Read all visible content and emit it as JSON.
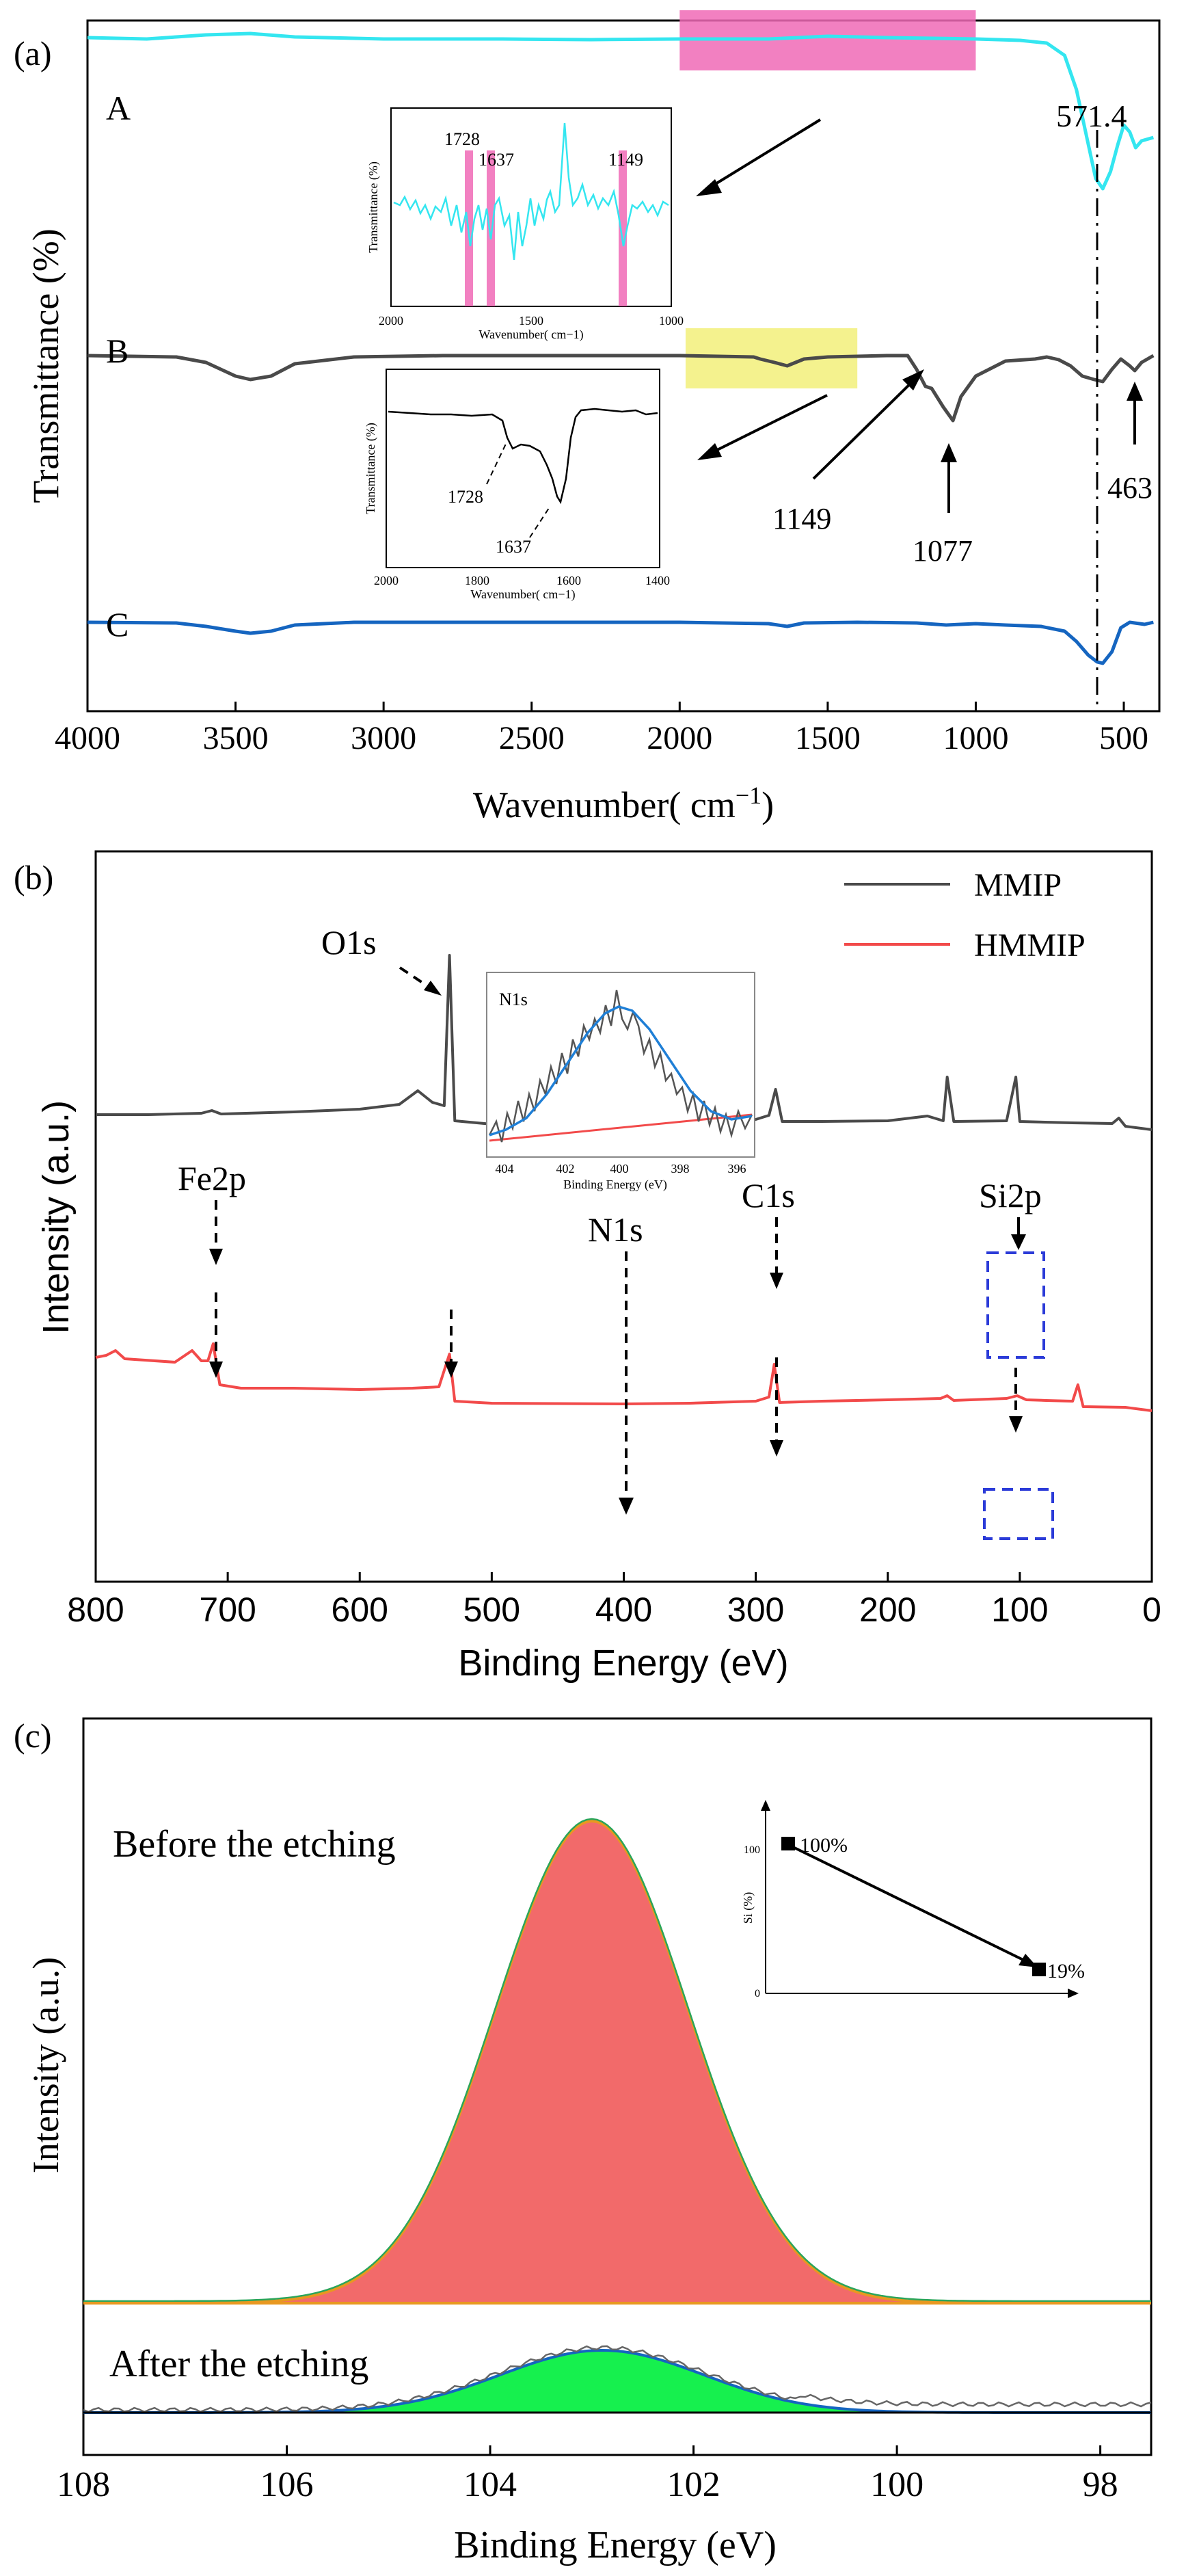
{
  "chart_data": [
    {
      "panel": "(a)",
      "type": "line",
      "xlabel": "Wavenumber( cm",
      "xlabel_sup": "−1",
      "xlabel_close": ")",
      "ylabel": "Transmittance (%)",
      "xlim": [
        4000,
        380
      ],
      "ticks": [
        4000,
        3500,
        3000,
        2500,
        2000,
        1500,
        1000,
        500
      ],
      "series": [
        {
          "name": "A",
          "color": "#34e6f0",
          "values": [
            [
              4000,
              34
            ],
            [
              3800,
              36
            ],
            [
              3700,
              33
            ],
            [
              3600,
              30
            ],
            [
              3450,
              28
            ],
            [
              3300,
              33
            ],
            [
              3000,
              36
            ],
            [
              2600,
              36
            ],
            [
              2300,
              37
            ],
            [
              2000,
              36
            ],
            [
              1700,
              36
            ],
            [
              1500,
              32
            ],
            [
              1300,
              34
            ],
            [
              1000,
              36
            ],
            [
              850,
              38
            ],
            [
              760,
              42
            ],
            [
              700,
              60
            ],
            [
              660,
              110
            ],
            [
              620,
              190
            ],
            [
              595,
              240
            ],
            [
              571,
              255
            ],
            [
              545,
              230
            ],
            [
              520,
              190
            ],
            [
              500,
              162
            ],
            [
              480,
              172
            ],
            [
              460,
              195
            ],
            [
              440,
              185
            ],
            [
              400,
              180
            ]
          ]
        },
        {
          "name": "B",
          "color": "#4a4a4a",
          "values": [
            [
              4000,
              210
            ],
            [
              3700,
              212
            ],
            [
              3600,
              220
            ],
            [
              3500,
              240
            ],
            [
              3450,
              245
            ],
            [
              3380,
              240
            ],
            [
              3300,
              222
            ],
            [
              3100,
              212
            ],
            [
              2800,
              210
            ],
            [
              2500,
              210
            ],
            [
              2000,
              210
            ],
            [
              1750,
              212
            ],
            [
              1728,
              215
            ],
            [
              1680,
              220
            ],
            [
              1637,
              225
            ],
            [
              1580,
              215
            ],
            [
              1500,
              212
            ],
            [
              1300,
              210
            ],
            [
              1230,
              210
            ],
            [
              1200,
              230
            ],
            [
              1170,
              255
            ],
            [
              1149,
              258
            ],
            [
              1110,
              285
            ],
            [
              1077,
              305
            ],
            [
              1050,
              270
            ],
            [
              1000,
              240
            ],
            [
              900,
              218
            ],
            [
              800,
              215
            ],
            [
              760,
              212
            ],
            [
              720,
              216
            ],
            [
              680,
              225
            ],
            [
              640,
              240
            ],
            [
              600,
              245
            ],
            [
              571,
              248
            ],
            [
              540,
              230
            ],
            [
              510,
              215
            ],
            [
              480,
              225
            ],
            [
              463,
              232
            ],
            [
              440,
              220
            ],
            [
              400,
              210
            ]
          ]
        },
        {
          "name": "C",
          "color": "#1565c0",
          "values": [
            [
              4000,
              372
            ],
            [
              3700,
              373
            ],
            [
              3600,
              378
            ],
            [
              3500,
              385
            ],
            [
              3450,
              388
            ],
            [
              3380,
              385
            ],
            [
              3300,
              376
            ],
            [
              3100,
              372
            ],
            [
              2500,
              372
            ],
            [
              2000,
              372
            ],
            [
              1700,
              374
            ],
            [
              1637,
              378
            ],
            [
              1580,
              373
            ],
            [
              1400,
              372
            ],
            [
              1200,
              373
            ],
            [
              1100,
              376
            ],
            [
              1000,
              374
            ],
            [
              900,
              376
            ],
            [
              780,
              378
            ],
            [
              700,
              385
            ],
            [
              660,
              400
            ],
            [
              620,
              420
            ],
            [
              590,
              430
            ],
            [
              571,
              432
            ],
            [
              540,
              415
            ],
            [
              510,
              380
            ],
            [
              480,
              372
            ],
            [
              430,
              375
            ],
            [
              400,
              372
            ]
          ]
        }
      ],
      "highlights": [
        {
          "series": "A",
          "from": 2000,
          "to": 1000,
          "color": "#f06ab6"
        },
        {
          "series": "B",
          "from": 1980,
          "to": 1400,
          "color": "#f2f07a"
        }
      ],
      "annotations": [
        "571.4",
        "1149",
        "1077",
        "463"
      ],
      "insets": [
        {
          "series": "A",
          "xlabel": "Wavenumber( cm−1)",
          "ylabel": "Transmittance (%)",
          "ticks": [
            "2000",
            "1500",
            "1000"
          ],
          "labels": [
            "1728",
            "1637",
            "1149"
          ]
        },
        {
          "series": "B",
          "xlabel": "Wavenumber( cm−1)",
          "ylabel": "Transmittance (%)",
          "ticks": [
            "2000",
            "1800",
            "1600",
            "1400"
          ],
          "labels": [
            "1728",
            "1637"
          ]
        }
      ]
    },
    {
      "panel": "(b)",
      "type": "line",
      "xlabel": "Binding Energy (eV)",
      "ylabel": "Intensity (a.u.)",
      "xlim": [
        800,
        0
      ],
      "ticks": [
        800,
        700,
        600,
        500,
        400,
        300,
        200,
        100,
        0
      ],
      "series": [
        {
          "name": "MMIP",
          "color": "#4a4a4a",
          "values": [
            [
              800,
              283
            ],
            [
              760,
              283
            ],
            [
              720,
              281
            ],
            [
              712,
              277
            ],
            [
              705,
              282
            ],
            [
              650,
              279
            ],
            [
              600,
              275
            ],
            [
              570,
              268
            ],
            [
              556,
              248
            ],
            [
              545,
              265
            ],
            [
              536,
              270
            ],
            [
              532,
              50
            ],
            [
              528,
              292
            ],
            [
              500,
              297
            ],
            [
              450,
              296
            ],
            [
              400,
              295
            ],
            [
              350,
              292
            ],
            [
              300,
              290
            ],
            [
              290,
              284
            ],
            [
              285,
              246
            ],
            [
              280,
              293
            ],
            [
              250,
              293
            ],
            [
              200,
              292
            ],
            [
              170,
              285
            ],
            [
              158,
              292
            ],
            [
              155,
              228
            ],
            [
              150,
              293
            ],
            [
              110,
              292
            ],
            [
              103,
              228
            ],
            [
              100,
              293
            ],
            [
              60,
              295
            ],
            [
              30,
              296
            ],
            [
              25,
              288
            ],
            [
              20,
              300
            ],
            [
              0,
              305
            ]
          ]
        },
        {
          "name": "HMMIP",
          "color": "#f24a4a",
          "values": [
            [
              800,
              340
            ],
            [
              792,
              337
            ],
            [
              785,
              330
            ],
            [
              778,
              342
            ],
            [
              740,
              347
            ],
            [
              727,
              330
            ],
            [
              720,
              345
            ],
            [
              715,
              345
            ],
            [
              711,
              320
            ],
            [
              706,
              380
            ],
            [
              690,
              385
            ],
            [
              650,
              385
            ],
            [
              600,
              387
            ],
            [
              560,
              385
            ],
            [
              540,
              383
            ],
            [
              532,
              335
            ],
            [
              528,
              404
            ],
            [
              500,
              407
            ],
            [
              400,
              408
            ],
            [
              350,
              407
            ],
            [
              300,
              404
            ],
            [
              290,
              398
            ],
            [
              286,
              350
            ],
            [
              282,
              406
            ],
            [
              250,
              404
            ],
            [
              200,
              402
            ],
            [
              160,
              400
            ],
            [
              155,
              396
            ],
            [
              150,
              403
            ],
            [
              110,
              400
            ],
            [
              102,
              396
            ],
            [
              95,
              402
            ],
            [
              80,
              403
            ],
            [
              60,
              404
            ],
            [
              56,
              380
            ],
            [
              52,
              412
            ],
            [
              20,
              413
            ],
            [
              0,
              418
            ]
          ]
        }
      ],
      "peaks": [
        "Fe2p",
        "O1s",
        "N1s",
        "C1s",
        "Si2p"
      ],
      "inset": {
        "title": "N1s",
        "xlabel": "Binding Energy (eV)",
        "ticks": [
          "404",
          "402",
          "400",
          "398",
          "396"
        ]
      }
    },
    {
      "panel": "(c)",
      "type": "area",
      "xlabel": "Binding Energy (eV)",
      "ylabel": "Intensity (a.u.)",
      "xlim": [
        108,
        97.5
      ],
      "ticks": [
        108,
        106,
        104,
        102,
        100,
        98
      ],
      "before": {
        "label": "Before the etching",
        "center": 103.0,
        "sigma": 0.95,
        "amplitude": 100,
        "color": "#f26a6a",
        "edge": "#e89820"
      },
      "after": {
        "label": "After the etching",
        "center": 102.9,
        "sigma": 1.0,
        "amplitude": 13,
        "color": "#16f04e",
        "edge": "#1565c0"
      },
      "inset": {
        "ylabel": "Si (%)",
        "yticks": [
          "100",
          "0"
        ],
        "points": [
          {
            "label": "100%",
            "value": 100
          },
          {
            "label": "19%",
            "value": 19
          }
        ]
      }
    }
  ]
}
